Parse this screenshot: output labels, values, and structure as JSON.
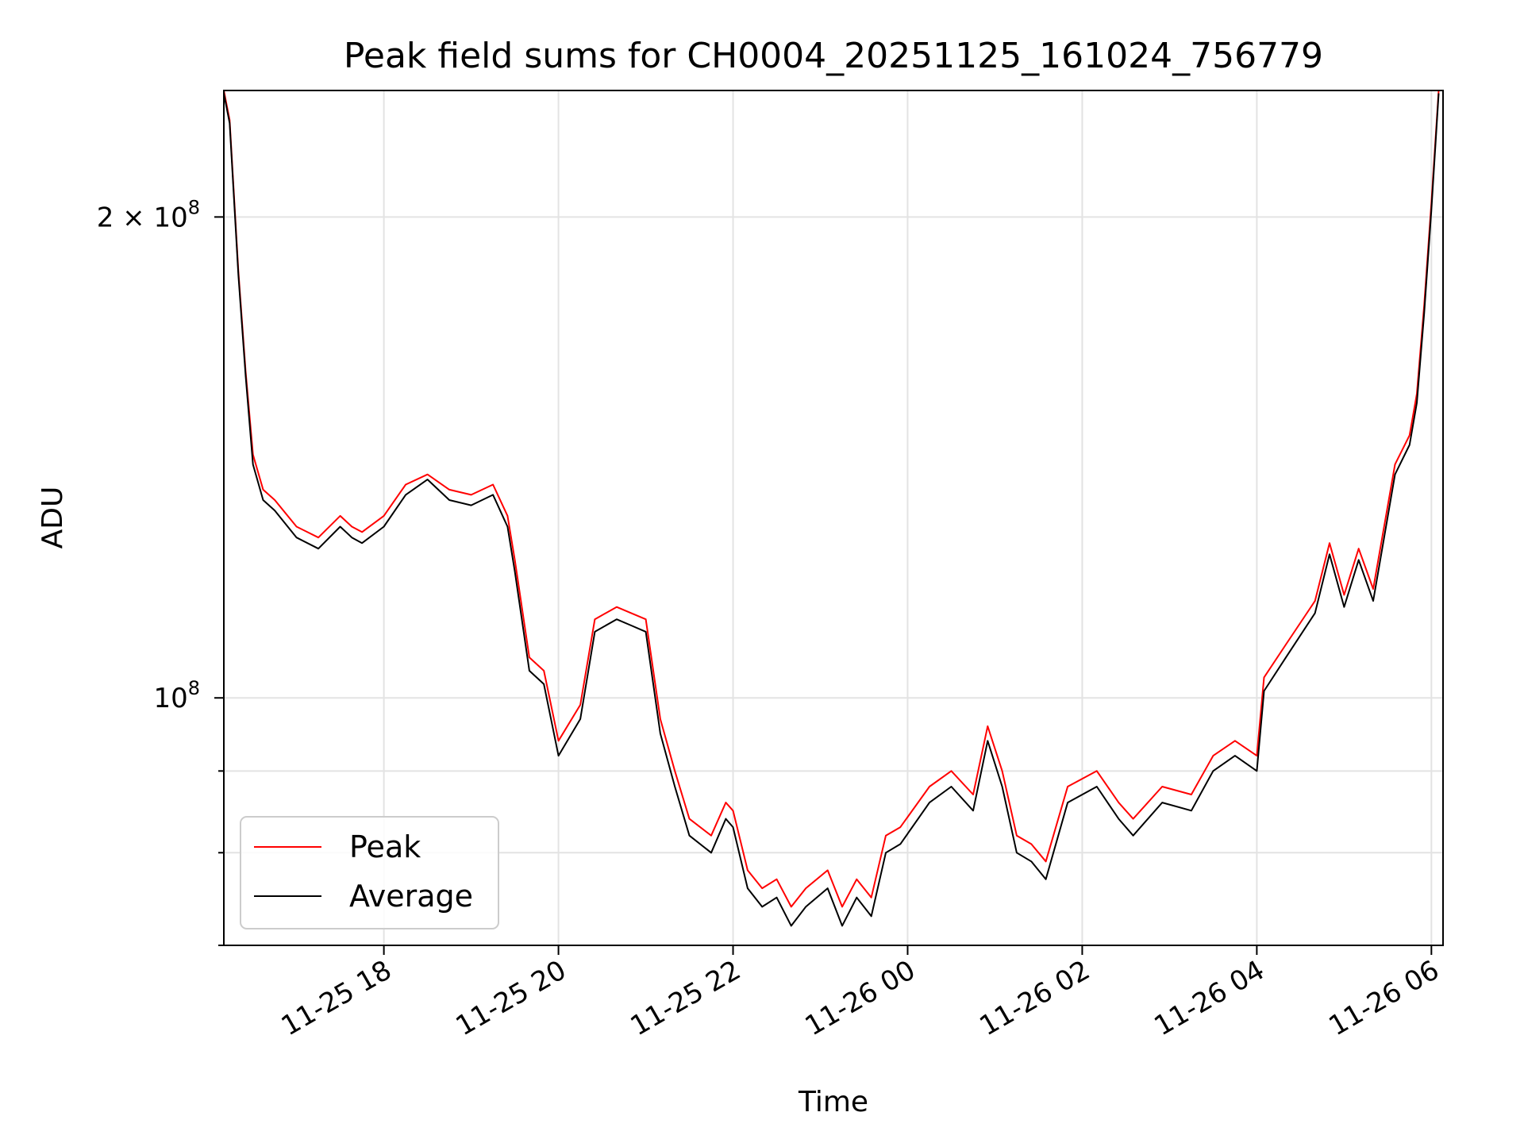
{
  "chart_data": {
    "type": "line",
    "title": "Peak field sums for CH0004_20251125_161024_756779",
    "xlabel": "Time",
    "ylabel": "ADU",
    "y_scale": "log",
    "ylim": [
      70000000,
      240000000
    ],
    "xlim": [
      "2025-11-25 16:10",
      "2025-11-26 06:08"
    ],
    "grid": true,
    "legend_placement": "lower-left",
    "x_ticks": [
      {
        "t": "2025-11-25 18:00",
        "label": "11-25 18"
      },
      {
        "t": "2025-11-25 20:00",
        "label": "11-25 20"
      },
      {
        "t": "2025-11-25 22:00",
        "label": "11-25 22"
      },
      {
        "t": "2025-11-26 00:00",
        "label": "11-26 00"
      },
      {
        "t": "2025-11-26 02:00",
        "label": "11-26 02"
      },
      {
        "t": "2025-11-26 04:00",
        "label": "11-26 04"
      },
      {
        "t": "2025-11-26 06:00",
        "label": "11-26 06"
      }
    ],
    "y_major_ticks": [
      {
        "value": 100000000,
        "label_base": "10",
        "label_exp": "8"
      },
      {
        "value": 200000000,
        "label_base": "2 × 10",
        "label_exp": "8"
      }
    ],
    "y_minor_ticks": [
      70000000,
      80000000,
      90000000
    ],
    "series": [
      {
        "name": "Peak",
        "color": "#ff0000",
        "x": [
          "2025-11-25 16:10",
          "2025-11-25 16:14",
          "2025-11-25 16:20",
          "2025-11-25 16:25",
          "2025-11-25 16:30",
          "2025-11-25 16:37",
          "2025-11-25 16:45",
          "2025-11-25 17:00",
          "2025-11-25 17:15",
          "2025-11-25 17:30",
          "2025-11-25 17:38",
          "2025-11-25 17:45",
          "2025-11-25 18:00",
          "2025-11-25 18:15",
          "2025-11-25 18:30",
          "2025-11-25 18:45",
          "2025-11-25 19:00",
          "2025-11-25 19:15",
          "2025-11-25 19:25",
          "2025-11-25 19:30",
          "2025-11-25 19:40",
          "2025-11-25 19:50",
          "2025-11-25 20:00",
          "2025-11-25 20:15",
          "2025-11-25 20:25",
          "2025-11-25 20:40",
          "2025-11-25 20:50",
          "2025-11-25 21:00",
          "2025-11-25 21:10",
          "2025-11-25 21:20",
          "2025-11-25 21:30",
          "2025-11-25 21:45",
          "2025-11-25 21:55",
          "2025-11-25 22:00",
          "2025-11-25 22:10",
          "2025-11-25 22:20",
          "2025-11-25 22:30",
          "2025-11-25 22:40",
          "2025-11-25 22:50",
          "2025-11-25 23:05",
          "2025-11-25 23:15",
          "2025-11-25 23:25",
          "2025-11-25 23:35",
          "2025-11-25 23:45",
          "2025-11-25 23:55",
          "2025-11-26 00:15",
          "2025-11-26 00:30",
          "2025-11-26 00:45",
          "2025-11-26 00:55",
          "2025-11-26 01:05",
          "2025-11-26 01:15",
          "2025-11-26 01:25",
          "2025-11-26 01:35",
          "2025-11-26 01:50",
          "2025-11-26 02:10",
          "2025-11-26 02:25",
          "2025-11-26 02:35",
          "2025-11-26 02:55",
          "2025-11-26 03:15",
          "2025-11-26 03:30",
          "2025-11-26 03:45",
          "2025-11-26 04:00",
          "2025-11-26 04:05",
          "2025-11-26 04:20",
          "2025-11-26 04:40",
          "2025-11-26 04:50",
          "2025-11-26 05:00",
          "2025-11-26 05:10",
          "2025-11-26 05:20",
          "2025-11-26 05:35",
          "2025-11-26 05:45",
          "2025-11-26 05:50",
          "2025-11-26 05:55",
          "2025-11-26 06:00",
          "2025-11-26 06:05"
        ],
        "values": [
          240000000,
          230000000,
          185000000,
          160000000,
          142000000,
          135000000,
          133000000,
          128000000,
          126000000,
          130000000,
          128000000,
          127000000,
          130000000,
          136000000,
          138000000,
          135000000,
          134000000,
          136000000,
          130000000,
          122000000,
          106000000,
          104000000,
          94000000,
          99000000,
          112000000,
          114000000,
          113000000,
          112000000,
          97000000,
          90000000,
          84000000,
          82000000,
          86000000,
          85000000,
          78000000,
          76000000,
          77000000,
          74000000,
          76000000,
          78000000,
          74000000,
          77000000,
          75000000,
          82000000,
          83000000,
          88000000,
          90000000,
          87000000,
          96000000,
          90000000,
          82000000,
          81000000,
          79000000,
          88000000,
          90000000,
          86000000,
          84000000,
          88000000,
          87000000,
          92000000,
          94000000,
          92000000,
          103000000,
          108000000,
          115000000,
          125000000,
          116000000,
          124000000,
          117000000,
          140000000,
          146000000,
          155000000,
          176000000,
          204000000,
          240000000
        ]
      },
      {
        "name": "Average",
        "color": "#000000",
        "x": [
          "2025-11-25 16:10",
          "2025-11-25 16:14",
          "2025-11-25 16:20",
          "2025-11-25 16:25",
          "2025-11-25 16:30",
          "2025-11-25 16:37",
          "2025-11-25 16:45",
          "2025-11-25 17:00",
          "2025-11-25 17:15",
          "2025-11-25 17:30",
          "2025-11-25 17:38",
          "2025-11-25 17:45",
          "2025-11-25 18:00",
          "2025-11-25 18:15",
          "2025-11-25 18:30",
          "2025-11-25 18:45",
          "2025-11-25 19:00",
          "2025-11-25 19:15",
          "2025-11-25 19:25",
          "2025-11-25 19:30",
          "2025-11-25 19:40",
          "2025-11-25 19:50",
          "2025-11-25 20:00",
          "2025-11-25 20:15",
          "2025-11-25 20:25",
          "2025-11-25 20:40",
          "2025-11-25 20:50",
          "2025-11-25 21:00",
          "2025-11-25 21:10",
          "2025-11-25 21:20",
          "2025-11-25 21:30",
          "2025-11-25 21:45",
          "2025-11-25 21:55",
          "2025-11-25 22:00",
          "2025-11-25 22:10",
          "2025-11-25 22:20",
          "2025-11-25 22:30",
          "2025-11-25 22:40",
          "2025-11-25 22:50",
          "2025-11-25 23:05",
          "2025-11-25 23:15",
          "2025-11-25 23:25",
          "2025-11-25 23:35",
          "2025-11-25 23:45",
          "2025-11-25 23:55",
          "2025-11-26 00:15",
          "2025-11-26 00:30",
          "2025-11-26 00:45",
          "2025-11-26 00:55",
          "2025-11-26 01:05",
          "2025-11-26 01:15",
          "2025-11-26 01:25",
          "2025-11-26 01:35",
          "2025-11-26 01:50",
          "2025-11-26 02:10",
          "2025-11-26 02:25",
          "2025-11-26 02:35",
          "2025-11-26 02:55",
          "2025-11-26 03:15",
          "2025-11-26 03:30",
          "2025-11-26 03:45",
          "2025-11-26 04:00",
          "2025-11-26 04:05",
          "2025-11-26 04:20",
          "2025-11-26 04:40",
          "2025-11-26 04:50",
          "2025-11-26 05:00",
          "2025-11-26 05:10",
          "2025-11-26 05:20",
          "2025-11-26 05:35",
          "2025-11-26 05:45",
          "2025-11-26 05:50",
          "2025-11-26 05:55",
          "2025-11-26 06:00",
          "2025-11-26 06:05"
        ],
        "values": [
          239000000,
          229000000,
          184000000,
          159000000,
          140000000,
          133000000,
          131000000,
          126000000,
          124000000,
          128000000,
          126000000,
          125000000,
          128000000,
          134000000,
          137000000,
          133000000,
          132000000,
          134000000,
          128000000,
          120000000,
          104000000,
          102000000,
          92000000,
          97000000,
          110000000,
          112000000,
          111000000,
          110000000,
          95000000,
          88000000,
          82000000,
          80000000,
          84000000,
          83000000,
          76000000,
          74000000,
          75000000,
          72000000,
          74000000,
          76000000,
          72000000,
          75000000,
          73000000,
          80000000,
          81000000,
          86000000,
          88000000,
          85000000,
          94000000,
          88000000,
          80000000,
          79000000,
          77000000,
          86000000,
          88000000,
          84000000,
          82000000,
          86000000,
          85000000,
          90000000,
          92000000,
          90000000,
          101000000,
          106000000,
          113000000,
          123000000,
          114000000,
          122000000,
          115000000,
          138000000,
          144000000,
          153000000,
          174000000,
          202000000,
          239000000
        ]
      }
    ]
  }
}
